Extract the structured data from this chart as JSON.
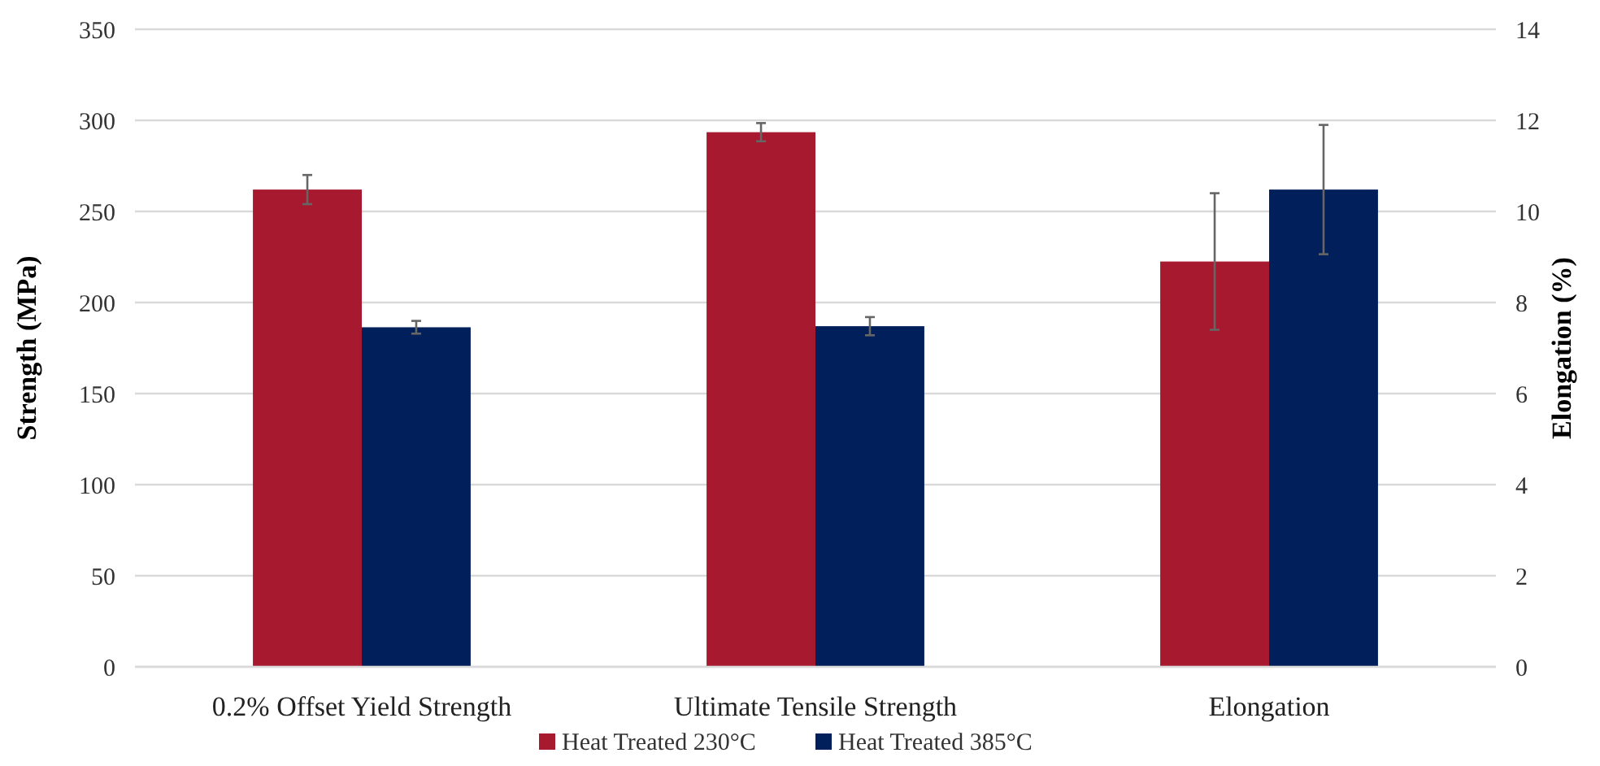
{
  "chart_data": {
    "type": "bar",
    "categories": [
      "0.2% Offset Yield Strength",
      "Ultimate Tensile Strength",
      "Elongation"
    ],
    "series": [
      {
        "name": "Heat Treated 230°C",
        "color": "#a6192e",
        "values": [
          262,
          293.5,
          null
        ],
        "errors": [
          8,
          5,
          null
        ]
      },
      {
        "name": "Heat Treated 385°C",
        "color": "#001f5b",
        "values": [
          186.4,
          187,
          null
        ],
        "errors": [
          3.5,
          5,
          null
        ]
      },
      {
        "color": "#a6192e",
        "axis": "y2",
        "values": [
          null,
          null,
          8.9
        ],
        "errors": [
          null,
          null,
          1.5
        ]
      },
      {
        "color": "#001f5b",
        "axis": "y2",
        "values": [
          null,
          null,
          10.48
        ],
        "errors": [
          null,
          null,
          1.42
        ]
      }
    ],
    "ylabel": "Strength (MPa)",
    "y2label": "Elongation (%)",
    "ylim": [
      0,
      350
    ],
    "yticks": [
      0,
      50,
      100,
      150,
      200,
      250,
      300,
      350
    ],
    "y2lim": [
      0,
      14
    ],
    "y2ticks": [
      0,
      2,
      4,
      6,
      8,
      10,
      12,
      14
    ],
    "grid": "y",
    "legend": "bottom"
  }
}
